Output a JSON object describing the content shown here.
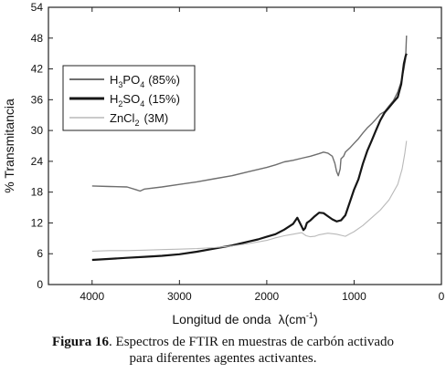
{
  "chart_data": {
    "type": "line",
    "xlabel_text": "Longitud de onda",
    "xlabel_symbol": "λ(cm",
    "xlabel_exp": "-1",
    "xlabel_close": ")",
    "ylabel": "% Transmitancia",
    "xlim": [
      4500,
      0
    ],
    "ylim": [
      0,
      54
    ],
    "x_ticks": [
      4000,
      3000,
      2000,
      1000,
      0
    ],
    "y_ticks": [
      0,
      6,
      12,
      18,
      24,
      30,
      36,
      42,
      48,
      54
    ],
    "legend_position": "top-left",
    "series": [
      {
        "name": "H3PO4 (85%)",
        "legend": {
          "a": "H",
          "s1": "3",
          "b": "PO",
          "s2": "4",
          "c": "(85%)"
        },
        "color": "#6e6e6e",
        "x": [
          4000,
          3800,
          3600,
          3500,
          3450,
          3400,
          3200,
          3000,
          2800,
          2600,
          2400,
          2200,
          2000,
          1900,
          1800,
          1700,
          1600,
          1500,
          1400,
          1350,
          1300,
          1250,
          1220,
          1200,
          1180,
          1160,
          1150,
          1120,
          1100,
          1050,
          1000,
          950,
          900,
          850,
          800,
          750,
          700,
          650,
          600,
          550,
          500,
          460,
          430,
          410,
          400
        ],
        "y": [
          19.2,
          19.1,
          19.0,
          18.5,
          18.2,
          18.6,
          19.0,
          19.5,
          20.0,
          20.6,
          21.2,
          22.0,
          22.8,
          23.3,
          23.9,
          24.2,
          24.6,
          25.0,
          25.5,
          25.8,
          25.6,
          25.0,
          23.6,
          22.0,
          21.2,
          22.5,
          24.5,
          25.0,
          25.8,
          26.6,
          27.5,
          28.4,
          29.5,
          30.5,
          31.3,
          32.2,
          33.2,
          33.7,
          34.8,
          35.8,
          37.5,
          39.5,
          42.0,
          44.0,
          48.5
        ]
      },
      {
        "name": "H2SO4 (15%)",
        "legend": {
          "a": "H",
          "s1": "2",
          "b": "SO",
          "s2": "4",
          "c": "(15%)"
        },
        "color": "#161616",
        "x": [
          4000,
          3800,
          3600,
          3400,
          3200,
          3000,
          2800,
          2600,
          2400,
          2300,
          2200,
          2100,
          2000,
          1900,
          1800,
          1700,
          1650,
          1600,
          1580,
          1560,
          1540,
          1500,
          1450,
          1400,
          1350,
          1300,
          1250,
          1200,
          1150,
          1100,
          1050,
          1000,
          950,
          900,
          850,
          800,
          750,
          700,
          650,
          600,
          550,
          500,
          460,
          430,
          410,
          400
        ],
        "y": [
          4.8,
          5.0,
          5.2,
          5.4,
          5.6,
          5.9,
          6.4,
          7.0,
          7.6,
          8.0,
          8.4,
          8.8,
          9.3,
          9.8,
          10.7,
          11.8,
          13.0,
          11.3,
          10.6,
          11.0,
          12.0,
          12.5,
          13.3,
          14.0,
          13.9,
          13.3,
          12.7,
          12.3,
          12.5,
          13.5,
          16.0,
          18.5,
          20.5,
          23.5,
          26.0,
          28.0,
          30.0,
          32.0,
          33.5,
          34.5,
          35.5,
          36.5,
          39.0,
          43.0,
          44.5,
          45.0
        ]
      },
      {
        "name": "ZnCl2 (3M)",
        "legend": {
          "a": "ZnCl",
          "s1": "",
          "b": "",
          "s2": "2",
          "c": "(3M)"
        },
        "color": "#b9b9b9",
        "x": [
          4000,
          3800,
          3600,
          3400,
          3200,
          3000,
          2800,
          2600,
          2400,
          2200,
          2000,
          1900,
          1800,
          1700,
          1600,
          1550,
          1500,
          1450,
          1400,
          1300,
          1200,
          1100,
          1000,
          900,
          800,
          700,
          600,
          500,
          450,
          420,
          400
        ],
        "y": [
          6.5,
          6.6,
          6.6,
          6.7,
          6.8,
          6.9,
          7.0,
          7.2,
          7.5,
          8.0,
          8.6,
          9.1,
          9.5,
          9.8,
          10.1,
          9.5,
          9.3,
          9.4,
          9.7,
          10.0,
          9.8,
          9.4,
          10.3,
          11.5,
          13.0,
          14.5,
          16.5,
          19.5,
          22.5,
          25.5,
          28.0
        ]
      }
    ]
  },
  "caption": {
    "label": "Figura 16",
    "line1": ". Espectros de FTIR en muestras de carbón activado",
    "line2": "para diferentes agentes activantes."
  }
}
